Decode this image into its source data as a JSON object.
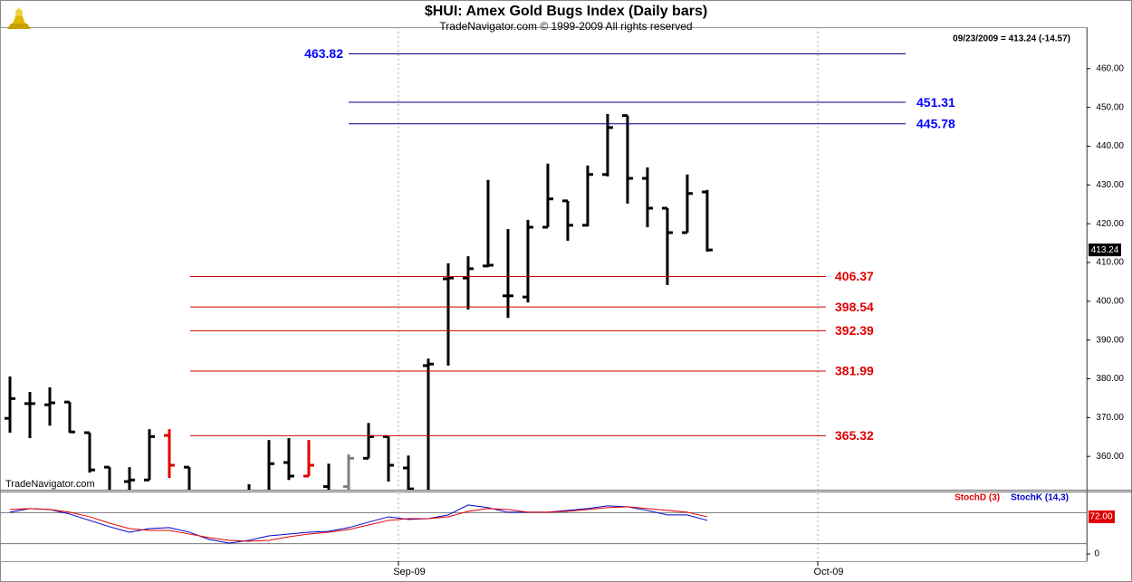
{
  "title": "$HUI:  Amex Gold Bugs Index  (Daily bars)",
  "subtitle": "TradeNavigator.com © 1999-2009 All rights reserved",
  "info": "09/23/2009 = 413.24 (-14.57)",
  "watermark": "TradeNavigator.com",
  "chart_data": [
    {
      "type": "ohlc",
      "xlim": [
        -0.5,
        54.05
      ],
      "xticks": [
        {
          "value": 19.5,
          "label": "Sep-09"
        },
        {
          "value": 40.55,
          "label": "Oct-09"
        }
      ],
      "ylim": [
        351.4,
        470.7
      ],
      "yticks": [
        {
          "value": 360,
          "label": "360.00"
        },
        {
          "value": 370,
          "label": "370.00"
        },
        {
          "value": 380,
          "label": "380.00"
        },
        {
          "value": 390,
          "label": "390.00"
        },
        {
          "value": 400,
          "label": "400.00"
        },
        {
          "value": 410,
          "label": "410.00"
        },
        {
          "value": 420,
          "label": "420.00"
        },
        {
          "value": 430,
          "label": "430.00"
        },
        {
          "value": 440,
          "label": "440.00"
        },
        {
          "value": 450,
          "label": "450.00"
        },
        {
          "value": 460,
          "label": "460.00"
        }
      ],
      "series": [
        {
          "color": "#000000",
          "open": [
            369.8,
            373.6,
            373.3,
            374.0,
            366.1,
            357.2,
            353.5,
            353.9,
            365.4,
            357.2,
            349,
            349,
            350,
            351.0,
            358.4,
            354.9,
            352.2,
            352.2,
            359.5,
            365.1,
            357.0,
            383.4,
            405.8,
            406.0,
            409.1,
            401.4,
            401.1,
            419.1,
            425.9,
            419.6,
            432.7,
            447.9,
            431.7,
            424.0,
            417.7,
            428.2
          ],
          "high": [
            380.6,
            376.6,
            377.8,
            374.0,
            366.1,
            357.2,
            357.2,
            367.0,
            367.0,
            357.2,
            350,
            350,
            352.8,
            364.2,
            364.7,
            364.2,
            358.1,
            360.5,
            368.6,
            365.1,
            360.2,
            385.2,
            409.8,
            411.6,
            431.3,
            418.6,
            421.0,
            435.5,
            425.9,
            435.0,
            448.3,
            447.9,
            434.5,
            424.0,
            432.7,
            428.7
          ],
          "low": [
            366.1,
            364.7,
            367.9,
            366.1,
            355.8,
            348,
            351.0,
            353.9,
            354.4,
            349,
            346,
            345,
            346,
            350,
            353.9,
            354.9,
            349,
            350,
            359.5,
            353.5,
            349,
            349,
            383.4,
            397.9,
            408.8,
            395.7,
            399.7,
            419.1,
            415.6,
            419.3,
            432.2,
            425.2,
            419.1,
            404.2,
            417.7,
            412.8
          ],
          "close": [
            374.9,
            373.6,
            373.8,
            366.3,
            356.5,
            351.0,
            353.9,
            365.1,
            357.7,
            351.0,
            348,
            347,
            351,
            358.1,
            354.9,
            357.7,
            351.0,
            359.5,
            365.1,
            357.7,
            351.6,
            383.8,
            406.0,
            408.4,
            409.3,
            401.4,
            419.1,
            426.4,
            419.6,
            432.7,
            444.8,
            431.7,
            424.0,
            417.7,
            427.8,
            413.24
          ],
          "colors": [
            "#000000",
            "#000000",
            "#000000",
            "#000000",
            "#000000",
            "#000000",
            "#000000",
            "#000000",
            "#e00000",
            "#000000",
            "#000000",
            "#000000",
            "#000000",
            "#000000",
            "#000000",
            "#e00000",
            "#000000",
            "#808080",
            "#000000",
            "#000000",
            "#000000",
            "#000000",
            "#000000",
            "#000000",
            "#000000",
            "#000000",
            "#000000",
            "#000000",
            "#000000",
            "#000000",
            "#000000",
            "#000000",
            "#000000",
            "#000000",
            "#000000",
            "#000000"
          ]
        }
      ],
      "levels": [
        {
          "value": 463.82,
          "color": "#0000ff"
        },
        {
          "value": 451.31,
          "color": "#0000ff"
        },
        {
          "value": 445.78,
          "color": "#0000ff"
        },
        {
          "value": 406.37,
          "color": "#e00000"
        },
        {
          "value": 398.54,
          "color": "#e00000"
        },
        {
          "value": 392.39,
          "color": "#e00000"
        },
        {
          "value": 381.99,
          "color": "#e00000"
        },
        {
          "value": 365.32,
          "color": "#e00000"
        }
      ]
    },
    {
      "type": "line",
      "xlim": [
        -0.5,
        54.05
      ],
      "ylim": [
        -14,
        121
      ],
      "yticks": [
        0
      ],
      "levels": [
        20,
        80
      ],
      "marker": {
        "value": 72,
        "label": "72.00",
        "color": "#e00000"
      },
      "series": [
        {
          "name": "StochD (3)",
          "color": "#e00000",
          "values": [
            86.1,
            87.9,
            86.1,
            80.8,
            72.0,
            59.7,
            49.2,
            45.7,
            45.7,
            38.7,
            31.6,
            26.4,
            24.6,
            26.4,
            33.4,
            38.7,
            42.2,
            47.4,
            56.2,
            65.0,
            68.5,
            68.5,
            72.0,
            82.6,
            87.9,
            86.1,
            80.8,
            80.8,
            82.6,
            86.1,
            89.6,
            91.4,
            87.9,
            84.3,
            80.8,
            72.0
          ]
        },
        {
          "name": "StochK (14,3)",
          "color": "#0000cc",
          "values": [
            80.8,
            87.9,
            86.1,
            77.3,
            65.0,
            52.7,
            42.2,
            49.2,
            51.0,
            42.2,
            28.1,
            21.1,
            26.4,
            35.1,
            38.7,
            42.2,
            43.9,
            51.0,
            61.5,
            72.0,
            66.8,
            68.5,
            75.6,
            94.9,
            89.6,
            80.8,
            80.8,
            80.8,
            84.3,
            87.9,
            93.1,
            91.4,
            84.3,
            75.6,
            75.6,
            65.0
          ]
        }
      ]
    }
  ]
}
